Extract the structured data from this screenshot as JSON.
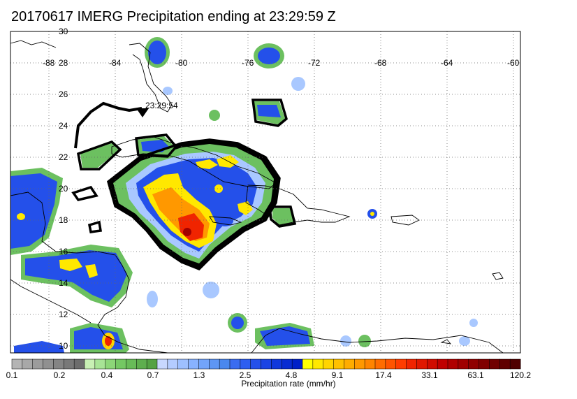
{
  "title": "20170617 IMERG Precipitation ending at 23:29:59 Z",
  "map": {
    "lat_ticks": [
      "30",
      "28",
      "26",
      "24",
      "22",
      "20",
      "18",
      "16",
      "14",
      "12",
      "10"
    ],
    "lon_ticks": [
      "-88",
      "-84",
      "-80",
      "-76",
      "-72",
      "-68",
      "-64",
      "-60"
    ],
    "track_label": "23:29:54"
  },
  "colorbar": {
    "title": "Precipitation rate (mm/hr)",
    "tick_labels": [
      "0.1",
      "0.2",
      "0.4",
      "0.7",
      "1.3",
      "2.5",
      "4.8",
      "9.1",
      "17.4",
      "33.1",
      "63.1",
      "120.2"
    ],
    "colors": [
      "#b4b4b4",
      "#a8a8a8",
      "#9c9c9c",
      "#909090",
      "#848484",
      "#787878",
      "#6c6c6c",
      "#c8f0b4",
      "#a8e496",
      "#8cd678",
      "#74c863",
      "#68bb58",
      "#5eae4e",
      "#54a244",
      "#c8d8ff",
      "#b4ccff",
      "#9ec0ff",
      "#88b2ff",
      "#72a4fa",
      "#5e96f4",
      "#4a88ee",
      "#3a6cf0",
      "#2e5ef0",
      "#2450ea",
      "#1a44e4",
      "#1038dc",
      "#082cd2",
      "#0020c8",
      "#ffff00",
      "#ffe800",
      "#ffd400",
      "#ffc000",
      "#ffac00",
      "#ff9800",
      "#ff8400",
      "#ff6c00",
      "#ff5400",
      "#ff3c00",
      "#f02400",
      "#e01800",
      "#d00c00",
      "#c00000",
      "#b00000",
      "#a00000",
      "#900000",
      "#800000",
      "#700000",
      "#600000",
      "#500000"
    ]
  }
}
